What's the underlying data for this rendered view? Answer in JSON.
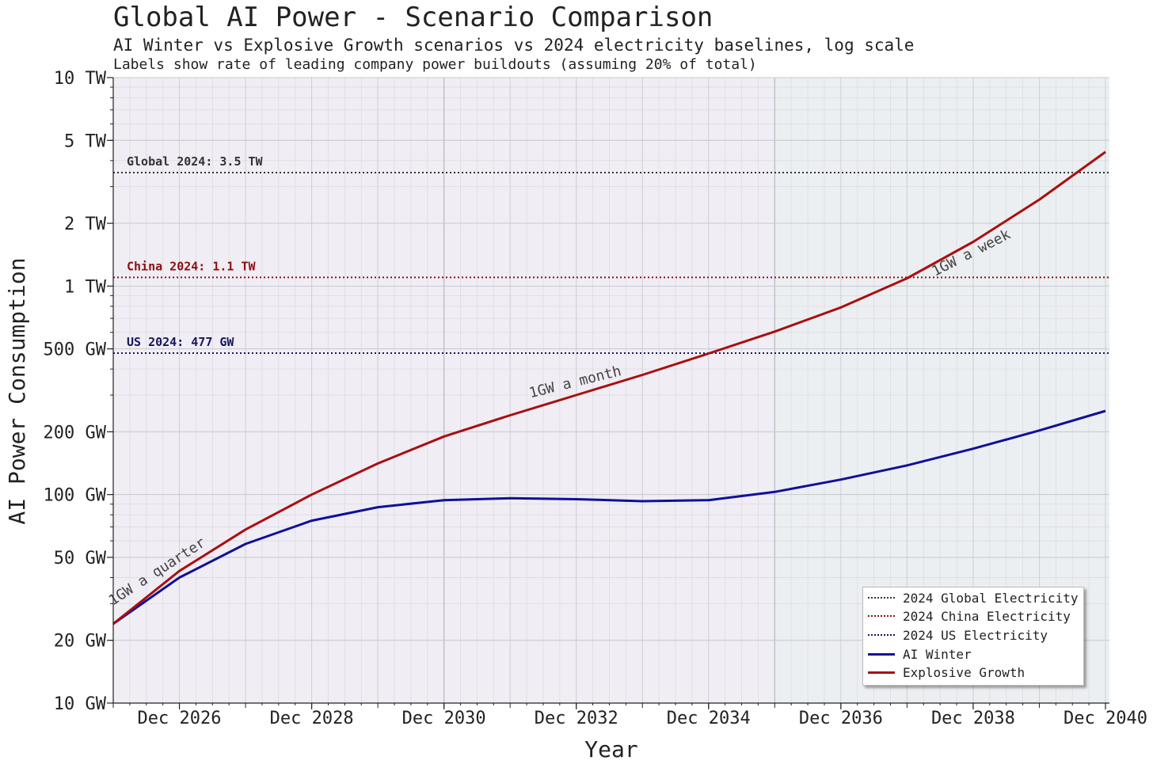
{
  "title": "Global AI Power - Scenario Comparison",
  "subtitle": "AI Winter vs Explosive Growth scenarios vs 2024 electricity baselines, log scale",
  "subtitle2": "Labels show rate of leading company power buildouts (assuming 20% of total)",
  "chart_data": {
    "type": "line",
    "xlabel": "Year",
    "ylabel": "AI Power Consumption",
    "yscale": "log",
    "ylim_gw": [
      10,
      10000
    ],
    "xlim_years": [
      2026.0,
      2041.06
    ],
    "x_ticks": [
      {
        "year": 2027.0,
        "label": "Dec 2026"
      },
      {
        "year": 2029.0,
        "label": "Dec 2028"
      },
      {
        "year": 2031.0,
        "label": "Dec 2030"
      },
      {
        "year": 2033.0,
        "label": "Dec 2032"
      },
      {
        "year": 2035.0,
        "label": "Dec 2034"
      },
      {
        "year": 2037.0,
        "label": "Dec 2036"
      },
      {
        "year": 2039.0,
        "label": "Dec 2038"
      },
      {
        "year": 2041.0,
        "label": "Dec 2040"
      }
    ],
    "y_ticks": [
      {
        "gw": 10,
        "label": "10 GW"
      },
      {
        "gw": 20,
        "label": "20 GW"
      },
      {
        "gw": 50,
        "label": "50 GW"
      },
      {
        "gw": 100,
        "label": "100 GW"
      },
      {
        "gw": 200,
        "label": "200 GW"
      },
      {
        "gw": 500,
        "label": "500 GW"
      },
      {
        "gw": 1000,
        "label": "1 TW"
      },
      {
        "gw": 2000,
        "label": "2 TW"
      },
      {
        "gw": 5000,
        "label": "5 TW"
      },
      {
        "gw": 10000,
        "label": "10 TW"
      }
    ],
    "series": [
      {
        "name": "AI Winter",
        "color": "#10109a",
        "x": [
          2026.0,
          2027.0,
          2028.0,
          2029.0,
          2030.0,
          2031.0,
          2032.0,
          2033.0,
          2034.0,
          2035.0,
          2036.0,
          2037.0,
          2038.0,
          2039.0,
          2040.0,
          2041.0
        ],
        "values": [
          24,
          40,
          58,
          75,
          87,
          94,
          96,
          95,
          93,
          94,
          103,
          118,
          138,
          166,
          203,
          252
        ]
      },
      {
        "name": "Explosive Growth",
        "color": "#a80f0f",
        "x": [
          2026.0,
          2027.0,
          2028.0,
          2029.0,
          2030.0,
          2031.0,
          2032.0,
          2033.0,
          2034.0,
          2035.0,
          2036.0,
          2037.0,
          2038.0,
          2039.0,
          2040.0,
          2041.0
        ],
        "values": [
          24,
          43,
          68,
          100,
          141,
          190,
          240,
          300,
          375,
          475,
          605,
          790,
          1090,
          1630,
          2600,
          4400
        ]
      }
    ],
    "baselines": [
      {
        "name": "2024 Global Electricity",
        "label": "Global 2024: 3.5 TW",
        "gw": 3500,
        "color": "#333333"
      },
      {
        "name": "2024 China Electricity",
        "label": "China 2024: 1.1 TW",
        "gw": 1100,
        "color": "#8b1010"
      },
      {
        "name": "2024 US Electricity",
        "label": "US 2024: 477 GW",
        "gw": 477,
        "color": "#16165e"
      }
    ],
    "annotations": [
      {
        "text": "1GW a quarter",
        "year": 2026.7,
        "gw": 41,
        "angle": -33
      },
      {
        "text": "1GW a month",
        "year": 2033.0,
        "gw": 330,
        "angle": -14
      },
      {
        "text": "1GW a week",
        "year": 2039.0,
        "gw": 1380,
        "angle": -27
      }
    ],
    "shaded_regions": [
      {
        "from": 2026.0,
        "to": 2036.0,
        "color": "#f0edf4"
      },
      {
        "from": 2036.0,
        "to": 2041.06,
        "color": "#eceff1"
      }
    ],
    "grid": true,
    "legend_position": "bottom-right"
  }
}
